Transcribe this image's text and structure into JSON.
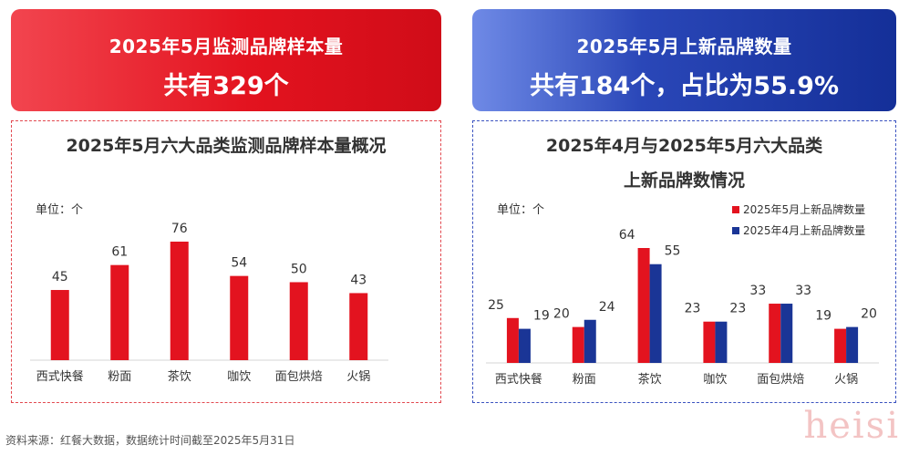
{
  "left_banner": {
    "title": "2025年5月监测品牌样本量",
    "value": "共有329个"
  },
  "right_banner": {
    "title": "2025年5月上新品牌数量",
    "value": "共有184个，占比为55.9%"
  },
  "left_panel": {
    "title": "2025年5月六大品类监测品牌样本量概况",
    "unit_label": "单位：个"
  },
  "right_panel": {
    "title_line1": "2025年4月与2025年5月六大品类",
    "title_line2": "上新品牌数情况",
    "unit_label": "单位：个"
  },
  "chart_data": [
    {
      "type": "bar",
      "title": "2025年5月六大品类监测品牌样本量概况",
      "categories": [
        "西式快餐",
        "粉面",
        "茶饮",
        "咖饮",
        "面包烘焙",
        "火锅"
      ],
      "values": [
        45,
        61,
        76,
        54,
        50,
        43
      ],
      "ylabel": "单位：个",
      "ylim": [
        0,
        76
      ],
      "color": "#e3131f",
      "grid": false,
      "legend": "none"
    },
    {
      "type": "bar",
      "title": "2025年4月与2025年5月六大品类上新品牌数情况",
      "categories": [
        "西式快餐",
        "粉面",
        "茶饮",
        "咖饮",
        "面包烘焙",
        "火锅"
      ],
      "series": [
        {
          "name": "2025年5月上新品牌数量",
          "values": [
            25,
            20,
            64,
            23,
            33,
            19
          ],
          "color": "#e3131f"
        },
        {
          "name": "2025年4月上新品牌数量",
          "values": [
            19,
            24,
            55,
            23,
            33,
            20
          ],
          "color": "#1a3596"
        }
      ],
      "ylabel": "单位：个",
      "ylim": [
        0,
        64
      ],
      "grid": false,
      "legend": "top-right"
    }
  ],
  "footer": {
    "source": "资料来源：红餐大数据，数据统计时间截至2025年5月31日"
  },
  "watermark": {
    "text": "heisi"
  }
}
